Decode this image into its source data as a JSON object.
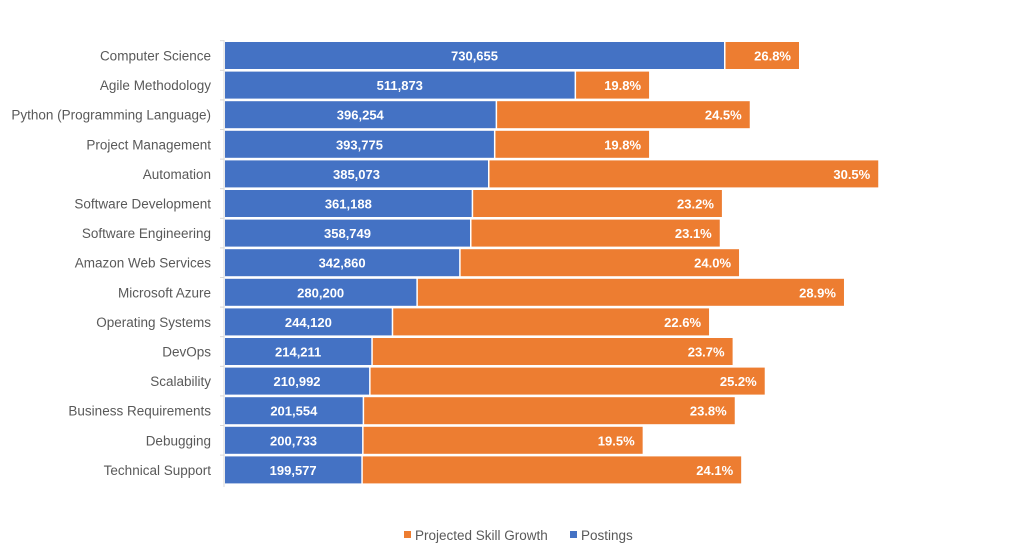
{
  "chart_data": {
    "type": "bar",
    "orientation": "horizontal",
    "title": "",
    "xlabel": "",
    "ylabel": "",
    "categories": [
      "Computer Science",
      "Agile Methodology",
      "Python (Programming Language)",
      "Project Management",
      "Automation",
      "Software Development",
      "Software Engineering",
      "Amazon Web Services",
      "Microsoft Azure",
      "Operating Systems",
      "DevOps",
      "Scalability",
      "Business Requirements",
      "Debugging",
      "Technical Support"
    ],
    "series": [
      {
        "name": "Postings",
        "color": "#4472C4",
        "values": [
          730655,
          511873,
          396254,
          393775,
          385073,
          361188,
          358749,
          342860,
          280200,
          244120,
          214211,
          210992,
          201554,
          200733,
          199577
        ],
        "labels": [
          "730,655",
          "511,873",
          "396,254",
          "393,775",
          "385,073",
          "361,188",
          "358,749",
          "342,860",
          "280,200",
          "244,120",
          "214,211",
          "210,992",
          "201,554",
          "200,733",
          "199,577"
        ]
      },
      {
        "name": "Projected Skill Growth",
        "color": "#ED7D31",
        "values": [
          26.8,
          19.8,
          24.5,
          19.8,
          30.5,
          23.2,
          23.1,
          24.0,
          28.9,
          22.6,
          23.7,
          25.2,
          23.8,
          19.5,
          24.1
        ],
        "labels": [
          "26.8%",
          "19.8%",
          "24.5%",
          "19.8%",
          "30.5%",
          "23.2%",
          "23.1%",
          "24.0%",
          "28.9%",
          "22.6%",
          "23.7%",
          "25.2%",
          "23.8%",
          "19.5%",
          "24.1%"
        ]
      }
    ],
    "legend": {
      "position": "bottom",
      "items": [
        "Projected Skill Growth",
        "Postings"
      ]
    },
    "grid": false
  }
}
